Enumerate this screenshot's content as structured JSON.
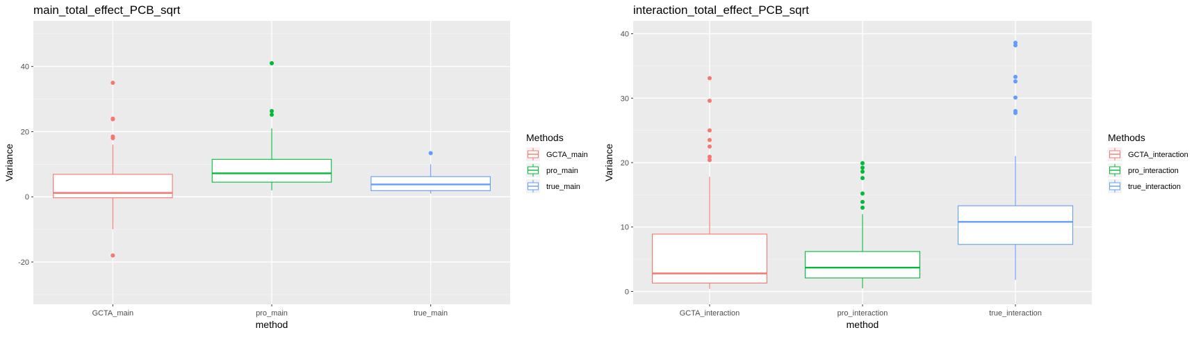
{
  "chart_data": [
    {
      "type": "box",
      "title": "main_total_effect_PCB_sqrt",
      "xlabel": "method",
      "ylabel": "Variance",
      "ylim": [
        -33,
        54
      ],
      "yticks": [
        -20,
        0,
        20,
        40
      ],
      "grid": true,
      "legend": {
        "title": "Methods",
        "placement": "right",
        "entries": [
          "GCTA_main",
          "pro_main",
          "true_main"
        ]
      },
      "categories": [
        "GCTA_main",
        "pro_main",
        "true_main"
      ],
      "boxes": [
        {
          "name": "GCTA_main",
          "color": "#F8766D",
          "whisker_low": -10,
          "q1": -0.3,
          "median": 1.2,
          "q3": 6.9,
          "whisker_high": 16,
          "outliers": [
            -18,
            18,
            18.5,
            23.8,
            24,
            35
          ]
        },
        {
          "name": "pro_main",
          "color": "#00BA38",
          "whisker_low": 2,
          "q1": 4.5,
          "median": 7.2,
          "q3": 11.5,
          "whisker_high": 21,
          "outliers": [
            25.2,
            26.3,
            41
          ]
        },
        {
          "name": "true_main",
          "color": "#619CFF",
          "whisker_low": 1,
          "q1": 1.9,
          "median": 3.8,
          "q3": 6.2,
          "whisker_high": 10,
          "outliers": [
            13.4
          ]
        }
      ]
    },
    {
      "type": "box",
      "title": "interaction_total_effect_PCB_sqrt",
      "xlabel": "method",
      "ylabel": "Variance",
      "ylim": [
        -2,
        42
      ],
      "yticks": [
        0,
        10,
        20,
        30,
        40
      ],
      "grid": true,
      "legend": {
        "title": "Methods",
        "placement": "right",
        "entries": [
          "GCTA_interaction",
          "pro_interaction",
          "true_interaction"
        ]
      },
      "categories": [
        "GCTA_interaction",
        "pro_interaction",
        "true_interaction"
      ],
      "boxes": [
        {
          "name": "GCTA_interaction",
          "color": "#F8766D",
          "whisker_low": 0.4,
          "q1": 1.3,
          "median": 2.8,
          "q3": 8.9,
          "whisker_high": 17.8,
          "outliers": [
            20.4,
            20.9,
            22.5,
            23.5,
            25,
            29.6,
            33.1
          ]
        },
        {
          "name": "pro_interaction",
          "color": "#00BA38",
          "whisker_low": 0.5,
          "q1": 2.1,
          "median": 3.7,
          "q3": 6.2,
          "whisker_high": 12,
          "outliers": [
            13,
            13.9,
            15.2,
            17.6,
            18.6,
            19.2,
            19.9
          ]
        },
        {
          "name": "true_interaction",
          "color": "#619CFF",
          "whisker_low": 1.8,
          "q1": 7.3,
          "median": 10.8,
          "q3": 13.3,
          "whisker_high": 21,
          "outliers": [
            27.7,
            28,
            30.1,
            32.6,
            33.3,
            38.2,
            38.6
          ]
        }
      ]
    }
  ]
}
